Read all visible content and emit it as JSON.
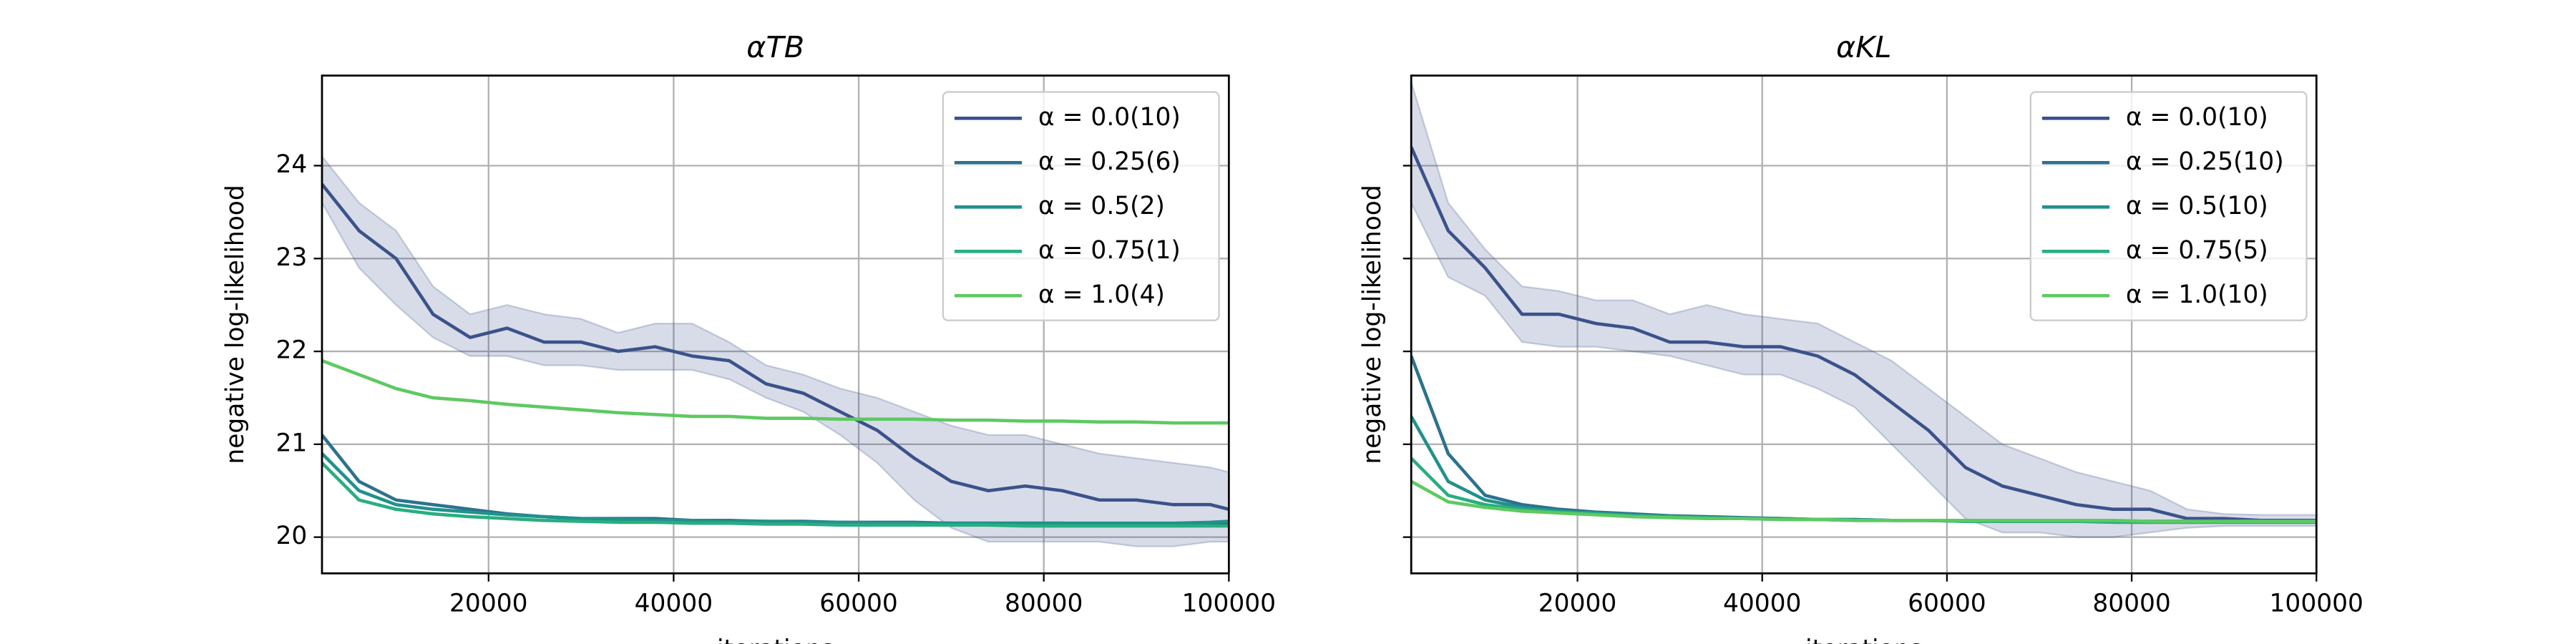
{
  "chart_data": [
    {
      "type": "line",
      "title": "αTB",
      "xlabel": "iterations",
      "ylabel": "negative log-likelihood",
      "x": [
        2000,
        6000,
        10000,
        14000,
        18000,
        22000,
        26000,
        30000,
        34000,
        38000,
        42000,
        46000,
        50000,
        54000,
        58000,
        62000,
        66000,
        70000,
        74000,
        78000,
        82000,
        86000,
        90000,
        94000,
        98000,
        100000
      ],
      "xlim": [
        2000,
        100000
      ],
      "xticks": [
        20000,
        40000,
        60000,
        80000,
        100000
      ],
      "ylim": [
        19.61,
        24.97
      ],
      "yticks": [
        20,
        21,
        22,
        23,
        24
      ],
      "ytick_labels": true,
      "grid": true,
      "legend": "upper right",
      "series": [
        {
          "name": "α = 0.0(10)",
          "color": "#3b528b",
          "values": [
            23.8,
            23.3,
            23.0,
            22.4,
            22.15,
            22.25,
            22.1,
            22.1,
            22.0,
            22.05,
            21.95,
            21.9,
            21.65,
            21.55,
            21.35,
            21.15,
            20.85,
            20.6,
            20.5,
            20.55,
            20.5,
            20.4,
            20.4,
            20.35,
            20.35,
            20.3
          ],
          "lower": [
            23.6,
            22.9,
            22.5,
            22.15,
            21.95,
            21.95,
            21.85,
            21.85,
            21.8,
            21.8,
            21.8,
            21.7,
            21.5,
            21.35,
            21.1,
            20.8,
            20.4,
            20.1,
            19.95,
            19.95,
            19.95,
            19.95,
            19.9,
            19.9,
            19.95,
            19.95
          ],
          "upper": [
            24.1,
            23.6,
            23.3,
            22.7,
            22.4,
            22.5,
            22.4,
            22.35,
            22.2,
            22.3,
            22.3,
            22.1,
            21.85,
            21.75,
            21.6,
            21.5,
            21.35,
            21.2,
            21.1,
            21.1,
            21.0,
            20.9,
            20.85,
            20.8,
            20.75,
            20.7
          ]
        },
        {
          "name": "α = 0.25(6)",
          "color": "#2c728e",
          "values": [
            21.1,
            20.6,
            20.4,
            20.35,
            20.3,
            20.25,
            20.22,
            20.2,
            20.2,
            20.2,
            20.18,
            20.18,
            20.17,
            20.17,
            20.16,
            20.16,
            20.16,
            20.15,
            20.15,
            20.15,
            20.15,
            20.14,
            20.14,
            20.14,
            20.14,
            20.14
          ]
        },
        {
          "name": "α = 0.5(2)",
          "color": "#21918c",
          "values": [
            20.9,
            20.5,
            20.35,
            20.3,
            20.27,
            20.24,
            20.22,
            20.2,
            20.19,
            20.18,
            20.18,
            20.17,
            20.17,
            20.16,
            20.16,
            20.15,
            20.15,
            20.15,
            20.15,
            20.15,
            20.15,
            20.15,
            20.15,
            20.15,
            20.16,
            20.17
          ]
        },
        {
          "name": "α = 0.75(1)",
          "color": "#28ae80",
          "values": [
            20.8,
            20.4,
            20.3,
            20.25,
            20.22,
            20.2,
            20.18,
            20.17,
            20.16,
            20.16,
            20.15,
            20.15,
            20.14,
            20.14,
            20.13,
            20.13,
            20.13,
            20.13,
            20.13,
            20.12,
            20.12,
            20.12,
            20.12,
            20.12,
            20.12,
            20.12
          ]
        },
        {
          "name": "α = 1.0(4)",
          "color": "#5ec962",
          "values": [
            21.9,
            21.75,
            21.6,
            21.5,
            21.47,
            21.43,
            21.4,
            21.37,
            21.34,
            21.32,
            21.3,
            21.3,
            21.28,
            21.28,
            21.27,
            21.27,
            21.27,
            21.26,
            21.26,
            21.25,
            21.25,
            21.24,
            21.24,
            21.23,
            21.23,
            21.23
          ]
        }
      ]
    },
    {
      "type": "line",
      "title": "αKL",
      "xlabel": "iterations",
      "ylabel": "negative log-likelihood",
      "x": [
        2000,
        6000,
        10000,
        14000,
        18000,
        22000,
        26000,
        30000,
        34000,
        38000,
        42000,
        46000,
        50000,
        54000,
        58000,
        62000,
        66000,
        70000,
        74000,
        78000,
        82000,
        86000,
        90000,
        94000,
        98000,
        100000
      ],
      "xlim": [
        2000,
        100000
      ],
      "xticks": [
        20000,
        40000,
        60000,
        80000,
        100000
      ],
      "ylim": [
        19.61,
        24.97
      ],
      "yticks": [
        20,
        21,
        22,
        23,
        24
      ],
      "ytick_labels": false,
      "grid": true,
      "legend": "upper right",
      "series": [
        {
          "name": "α = 0.0(10)",
          "color": "#3b528b",
          "values": [
            24.2,
            23.3,
            22.9,
            22.4,
            22.4,
            22.3,
            22.25,
            22.1,
            22.1,
            22.05,
            22.05,
            21.95,
            21.75,
            21.45,
            21.15,
            20.75,
            20.55,
            20.45,
            20.35,
            20.3,
            20.3,
            20.2,
            20.2,
            20.18,
            20.18,
            20.18
          ],
          "lower": [
            23.6,
            22.8,
            22.6,
            22.1,
            22.05,
            22.05,
            22.0,
            21.95,
            21.85,
            21.75,
            21.75,
            21.6,
            21.4,
            21.0,
            20.6,
            20.2,
            20.05,
            20.05,
            20.0,
            20.0,
            20.05,
            20.1,
            20.12,
            20.12,
            20.12,
            20.12
          ],
          "upper": [
            24.9,
            23.6,
            23.1,
            22.7,
            22.65,
            22.55,
            22.55,
            22.4,
            22.5,
            22.4,
            22.35,
            22.3,
            22.1,
            21.9,
            21.6,
            21.3,
            21.0,
            20.85,
            20.7,
            20.6,
            20.5,
            20.3,
            20.25,
            20.24,
            20.24,
            20.24
          ]
        },
        {
          "name": "α = 0.25(10)",
          "color": "#2c728e",
          "values": [
            21.95,
            20.9,
            20.45,
            20.35,
            20.3,
            20.27,
            20.25,
            20.23,
            20.22,
            20.21,
            20.2,
            20.19,
            20.19,
            20.18,
            20.18,
            20.18,
            20.17,
            20.17,
            20.17,
            20.17,
            20.17,
            20.17,
            20.17,
            20.17,
            20.17,
            20.17
          ]
        },
        {
          "name": "α = 0.5(10)",
          "color": "#21918c",
          "values": [
            21.3,
            20.6,
            20.4,
            20.32,
            20.28,
            20.26,
            20.24,
            20.22,
            20.21,
            20.2,
            20.2,
            20.19,
            20.19,
            20.18,
            20.18,
            20.17,
            20.17,
            20.17,
            20.17,
            20.17,
            20.17,
            20.17,
            20.17,
            20.17,
            20.17,
            20.17
          ]
        },
        {
          "name": "α = 0.75(5)",
          "color": "#28ae80",
          "values": [
            20.85,
            20.45,
            20.35,
            20.3,
            20.27,
            20.25,
            20.23,
            20.22,
            20.21,
            20.2,
            20.19,
            20.19,
            20.18,
            20.18,
            20.18,
            20.17,
            20.17,
            20.17,
            20.17,
            20.16,
            20.16,
            20.16,
            20.16,
            20.16,
            20.16,
            20.16
          ]
        },
        {
          "name": "α = 1.0(10)",
          "color": "#5ec962",
          "values": [
            20.6,
            20.38,
            20.32,
            20.28,
            20.26,
            20.24,
            20.22,
            20.21,
            20.2,
            20.2,
            20.19,
            20.19,
            20.18,
            20.18,
            20.18,
            20.18,
            20.18,
            20.18,
            20.18,
            20.18,
            20.17,
            20.17,
            20.17,
            20.17,
            20.17,
            20.17
          ]
        }
      ]
    }
  ]
}
